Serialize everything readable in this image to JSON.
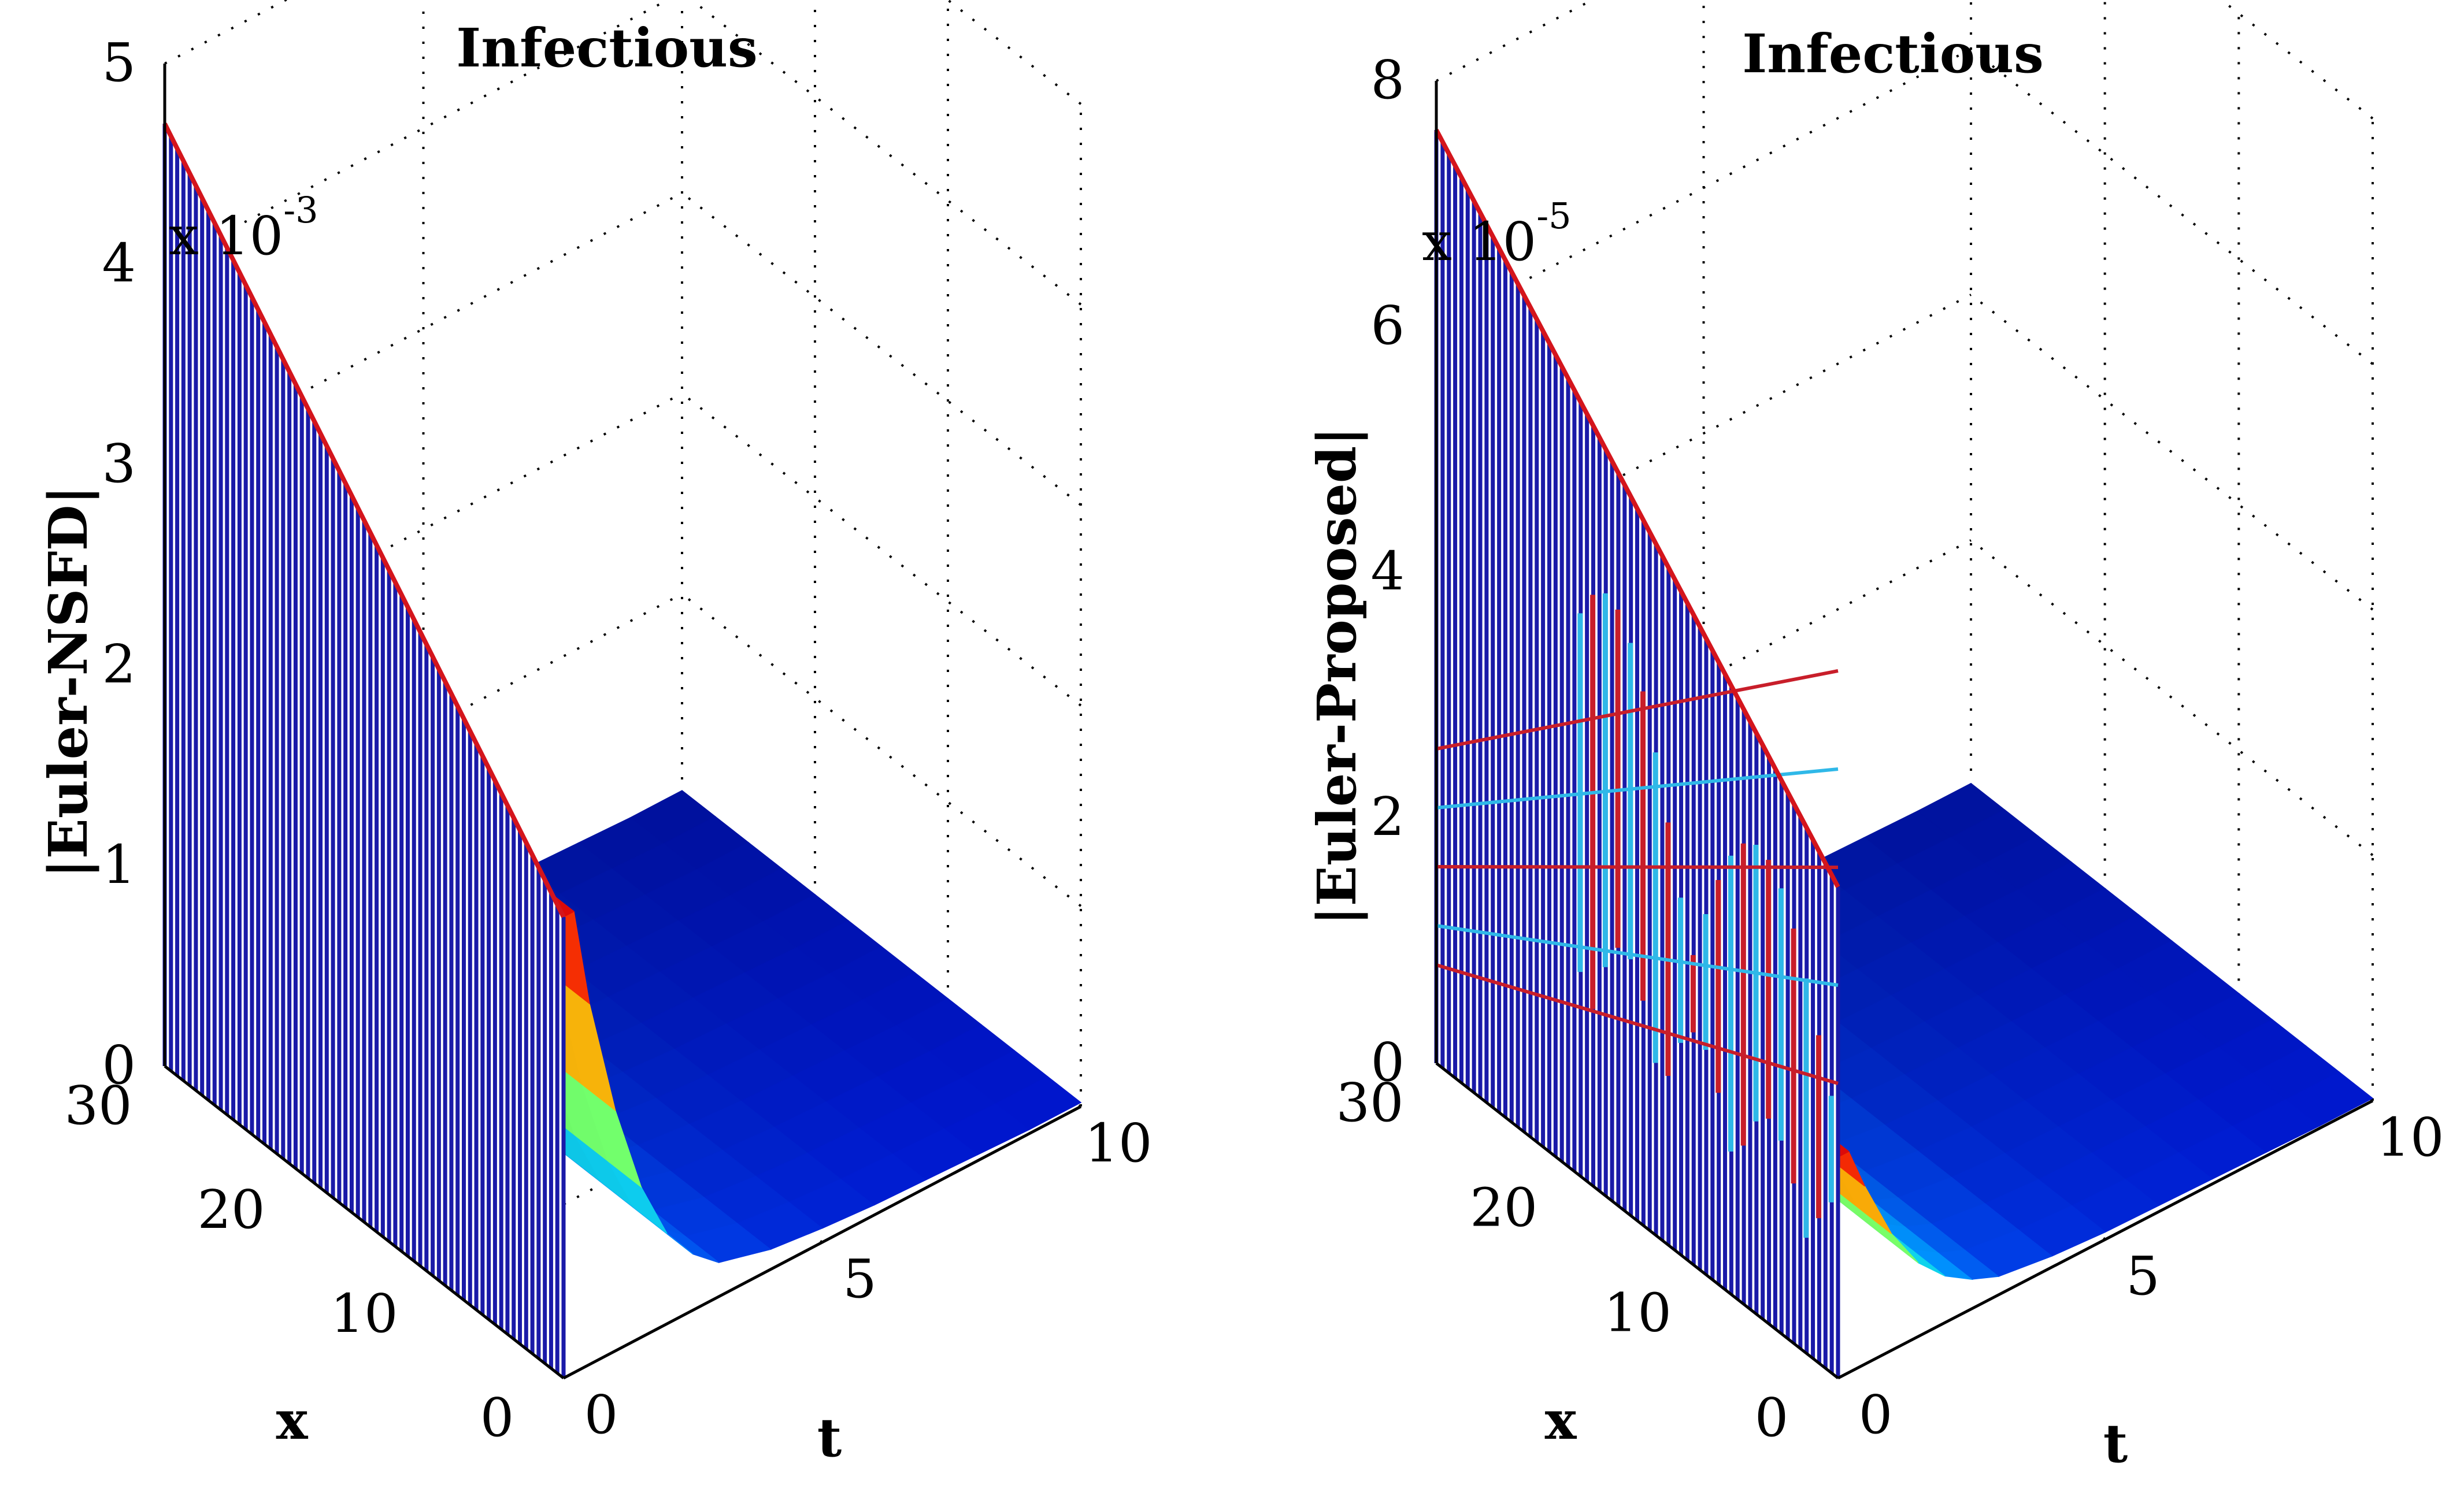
{
  "chart_data": [
    {
      "type": "surface3d",
      "title": "Infectious",
      "zlabel": "|Euler-NSFD|",
      "xlabel": "x",
      "tlabel": "t",
      "z_multiplier_base": "x 10",
      "z_multiplier_exp": "-3",
      "x_ticks": [
        "0",
        "10",
        "20",
        "30"
      ],
      "t_ticks": [
        "0",
        "5",
        "10"
      ],
      "z_ticks": [
        "0",
        "1",
        "2",
        "3",
        "4",
        "5"
      ],
      "xlim": [
        0,
        30
      ],
      "tlim": [
        0,
        10
      ],
      "zlim": [
        0,
        5
      ],
      "error_at_t0": {
        "x": [
          0,
          30
        ],
        "z": [
          2.3,
          4.7
        ]
      },
      "surface": {
        "t": [
          0,
          0.2,
          0.5,
          1,
          1.5,
          2,
          2.5,
          3,
          4,
          5,
          6,
          7,
          8,
          9,
          10
        ],
        "z_profile": [
          2.3,
          2.3,
          1.8,
          1.2,
          0.75,
          0.45,
          0.28,
          0.17,
          0.1,
          0.07,
          0.05,
          0.04,
          0.03,
          0.02,
          0.02
        ]
      }
    },
    {
      "type": "surface3d",
      "title": "Infectious",
      "zlabel": "|Euler-Proposed|",
      "xlabel": "x",
      "tlabel": "t",
      "z_multiplier_base": "x 10",
      "z_multiplier_exp": "-5",
      "x_ticks": [
        "0",
        "10",
        "20",
        "30"
      ],
      "t_ticks": [
        "0",
        "5",
        "10"
      ],
      "z_ticks": [
        "0",
        "2",
        "4",
        "6",
        "8"
      ],
      "xlim": [
        0,
        30
      ],
      "tlim": [
        0,
        10
      ],
      "zlim": [
        0,
        8
      ],
      "error_at_t0": {
        "x": [
          0,
          30
        ],
        "z": [
          4.0,
          7.6
        ]
      },
      "surface": {
        "t": [
          0,
          0.2,
          0.5,
          1,
          1.5,
          2,
          2.5,
          3,
          4,
          5,
          6,
          7,
          8,
          9,
          10
        ],
        "z_profile": [
          1.8,
          1.8,
          1.45,
          0.95,
          0.6,
          0.38,
          0.24,
          0.15,
          0.09,
          0.06,
          0.05,
          0.04,
          0.03,
          0.02,
          0.02
        ]
      }
    }
  ]
}
